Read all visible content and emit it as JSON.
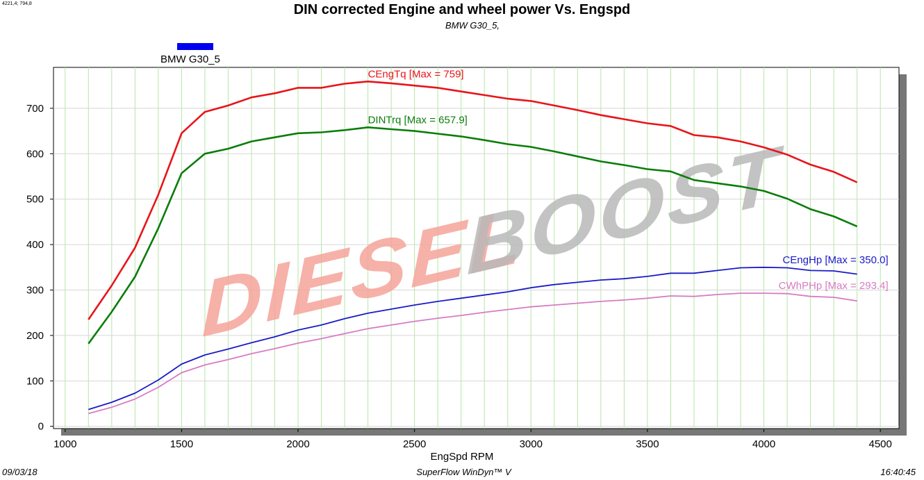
{
  "corner_readout": "4221,4; 794,8",
  "footer": {
    "date": "09/03/18",
    "app": "SuperFlow WinDyn™ V",
    "time": "16:40:45"
  },
  "watermark": {
    "part1": "DIESEL",
    "part2": "BOOST",
    "color1": "#f4a39a",
    "color2": "#b9b9b9"
  },
  "chart_data": {
    "type": "line",
    "title": "DIN corrected Engine and wheel power Vs. Engspd",
    "subtitle": "BMW G30_5,",
    "xlabel": "EngSpd  RPM",
    "ylabel": "",
    "xlim": [
      950,
      4580
    ],
    "ylim": [
      -5,
      790
    ],
    "xticks": [
      1000,
      1500,
      2000,
      2500,
      3000,
      3500,
      4000,
      4500
    ],
    "yticks": [
      0,
      100,
      200,
      300,
      400,
      500,
      600,
      700
    ],
    "xgrid": [
      1000,
      1100,
      1200,
      1300,
      1400,
      1500,
      1600,
      1700,
      1800,
      1900,
      2000,
      2100,
      2200,
      2300,
      2400,
      2500,
      2600,
      2700,
      2800,
      2900,
      3000,
      3100,
      3200,
      3300,
      3400,
      3500,
      3600,
      3700,
      3800,
      3900,
      4000,
      4100,
      4200,
      4300,
      4400,
      4500
    ],
    "ygrid": [
      0,
      100,
      200,
      300,
      400,
      500,
      600,
      700
    ],
    "grid_color": "#b5e6a6",
    "legend": {
      "entry": "BMW G30_5",
      "swatch_color": "#0000ee",
      "position": "top-left"
    },
    "x": [
      1100,
      1200,
      1300,
      1400,
      1500,
      1600,
      1700,
      1800,
      1900,
      2000,
      2100,
      2200,
      2300,
      2400,
      2500,
      2600,
      2700,
      2800,
      2900,
      3000,
      3100,
      3200,
      3300,
      3400,
      3500,
      3600,
      3700,
      3800,
      3900,
      4000,
      4100,
      4200,
      4300,
      4400
    ],
    "series": [
      {
        "name": "CEngTq",
        "label": "CEngTq [Max = 759]",
        "color": "#e8141a",
        "width": 2.6,
        "values": [
          235,
          310,
          393,
          510,
          645,
          692,
          706,
          724,
          733,
          745,
          745,
          754,
          759,
          755,
          750,
          745,
          737,
          729,
          721,
          716,
          706,
          696,
          685,
          676,
          667,
          661,
          641,
          636,
          627,
          614,
          598,
          576,
          560,
          537
        ]
      },
      {
        "name": "DINTrq",
        "label": "DINTrq [Max = 657.9]",
        "color": "#0b7d0b",
        "width": 2.6,
        "values": [
          182,
          252,
          329,
          436,
          557,
          600,
          611,
          627,
          636,
          645,
          647,
          652,
          658,
          654,
          650,
          644,
          638,
          630,
          621,
          615,
          605,
          594,
          583,
          575,
          566,
          561,
          542,
          535,
          528,
          518,
          501,
          478,
          462,
          440
        ]
      },
      {
        "name": "CEngHp",
        "label": "CEngHp [Max = 350.0]",
        "color": "#1a1ac8",
        "width": 1.8,
        "values": [
          37,
          53,
          73,
          102,
          137,
          157,
          170,
          184,
          197,
          212,
          223,
          237,
          249,
          258,
          267,
          275,
          282,
          289,
          296,
          305,
          312,
          317,
          322,
          325,
          330,
          337,
          337,
          343,
          349,
          350,
          349,
          343,
          342,
          335
        ]
      },
      {
        "name": "CWhPHp",
        "label": "CWhPHp [Max = 293.4]",
        "color": "#d87ac3",
        "width": 1.8,
        "values": [
          28,
          42,
          60,
          86,
          118,
          135,
          147,
          160,
          171,
          183,
          193,
          204,
          215,
          223,
          231,
          238,
          244,
          251,
          257,
          263,
          267,
          271,
          275,
          278,
          282,
          287,
          286,
          290,
          293,
          293,
          292,
          286,
          284,
          276
        ]
      }
    ]
  }
}
